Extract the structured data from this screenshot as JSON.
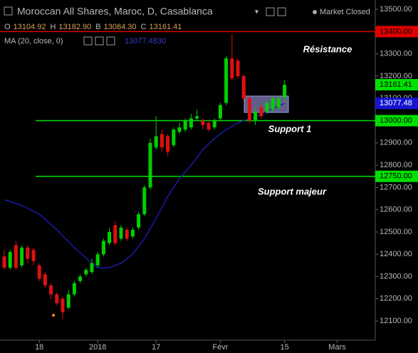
{
  "header": {
    "title": "Moroccan All Shares, Maroc, D, Casablanca",
    "status": "Market Closed",
    "ohlc": [
      {
        "label": "O",
        "value": "13104.92"
      },
      {
        "label": "H",
        "value": "13182.90"
      },
      {
        "label": "B",
        "value": "13084.30"
      },
      {
        "label": "C",
        "value": "13161.41"
      }
    ],
    "indicator_value": "13077.4830"
  },
  "chart_data": {
    "type": "candlestick",
    "categories": [
      null,
      null,
      null,
      null,
      null,
      null,
      "18",
      null,
      null,
      null,
      null,
      null,
      null,
      null,
      null,
      null,
      "2018",
      null,
      null,
      null,
      null,
      null,
      null,
      null,
      null,
      null,
      "17",
      null,
      null,
      null,
      null,
      null,
      null,
      null,
      null,
      null,
      null,
      "Févr",
      null,
      null,
      null,
      null,
      null,
      null,
      null,
      null,
      null,
      null,
      "15",
      null,
      null,
      null,
      null,
      null,
      null,
      null,
      null,
      "Mars"
    ],
    "open": [
      12390,
      12340,
      12440,
      12350,
      12430,
      12420,
      12350,
      12310,
      12260,
      12220,
      12200,
      12160,
      12220,
      12280,
      12310,
      12320,
      12350,
      12400,
      12450,
      12530,
      12470,
      12510,
      12480,
      12520,
      12580,
      12700,
      12880,
      12940,
      12930,
      12890,
      12950,
      12960,
      12970,
      13010,
      13000,
      12990,
      12970,
      13010,
      13080,
      13280,
      13270,
      13200,
      13100,
      13000,
      13060,
      13040,
      13050,
      13060,
      13104.92,
      null,
      null,
      null,
      null,
      null,
      null,
      null,
      null,
      null
    ],
    "high": [
      12420,
      12420,
      12460,
      12440,
      12440,
      12430,
      12360,
      12320,
      12270,
      12230,
      12210,
      12240,
      12280,
      12310,
      12340,
      12380,
      12410,
      12470,
      12520,
      12550,
      12530,
      12520,
      12520,
      12590,
      12710,
      12920,
      13020,
      12960,
      12940,
      12970,
      12990,
      13010,
      13030,
      13050,
      13010,
      13000,
      13010,
      13080,
      13290,
      13390,
      13280,
      13210,
      13110,
      13060,
      13070,
      13090,
      13110,
      13110,
      13182.9,
      null,
      null,
      null,
      null,
      null,
      null,
      null,
      null,
      null
    ],
    "low": [
      12330,
      12330,
      12330,
      12340,
      12360,
      12350,
      12280,
      12250,
      12200,
      12170,
      12110,
      12150,
      12210,
      12270,
      12300,
      12310,
      12340,
      12390,
      12440,
      12440,
      12460,
      12460,
      12470,
      12510,
      12570,
      12690,
      12870,
      12860,
      12840,
      12880,
      12940,
      12950,
      12960,
      13000,
      12960,
      12950,
      12960,
      13000,
      13070,
      13180,
      13190,
      13090,
      12990,
      12980,
      13010,
      13030,
      13040,
      13050,
      13084.3,
      null,
      null,
      null,
      null,
      null,
      null,
      null,
      null,
      null
    ],
    "close": [
      12340,
      12410,
      12340,
      12430,
      12380,
      12370,
      12290,
      12260,
      12220,
      12180,
      12140,
      12220,
      12270,
      12300,
      12330,
      12360,
      12400,
      12460,
      12500,
      12450,
      12520,
      12470,
      12510,
      12580,
      12700,
      12900,
      12930,
      12880,
      12860,
      12960,
      12970,
      13000,
      13010,
      13020,
      12980,
      12960,
      13000,
      13070,
      13280,
      13190,
      13200,
      13100,
      13000,
      13040,
      13020,
      13080,
      13100,
      13100,
      13161.41,
      null,
      null,
      null,
      null,
      null,
      null,
      null,
      null,
      null
    ],
    "up_color": "#00d000",
    "down_color": "#e01010",
    "series": [
      {
        "name": "MA (20, close, 0)",
        "color": "#1a1aa8",
        "values": [
          12645,
          12637,
          12628,
          12620,
          12607,
          12593,
          12580,
          12557,
          12533,
          12510,
          12483,
          12457,
          12430,
          12407,
          12383,
          12360,
          12340,
          12338,
          12340,
          12350,
          12360,
          12380,
          12400,
          12435,
          12470,
          12515,
          12560,
          12610,
          12660,
          12700,
          12740,
          12770,
          12800,
          12835,
          12870,
          12895,
          12920,
          12940,
          12960,
          12975,
          12990,
          13000,
          13010,
          13020,
          13030,
          13042,
          13055,
          13066,
          13077.48,
          null,
          null,
          null,
          null,
          null,
          null,
          null,
          null,
          null
        ]
      }
    ],
    "ylim": [
      12014,
      13542
    ],
    "yticks": [
      {
        "value": 12100,
        "label": "12100.00"
      },
      {
        "value": 12200,
        "label": "12200.00"
      },
      {
        "value": 12300,
        "label": "12300.00"
      },
      {
        "value": 12400,
        "label": "12400.00"
      },
      {
        "value": 12500,
        "label": "12500.00"
      },
      {
        "value": 12600,
        "label": "12600.00"
      },
      {
        "value": 12700,
        "label": "12700.00"
      },
      {
        "value": 12800,
        "label": "12800.00"
      },
      {
        "value": 12900,
        "label": "12900.00"
      },
      {
        "value": 13000,
        "label": "13000.00"
      },
      {
        "value": 13100,
        "label": "13100.00"
      },
      {
        "value": 13200,
        "label": "13200.00"
      },
      {
        "value": 13300,
        "label": "13300.00"
      },
      {
        "value": 13400,
        "label": "13400.00"
      },
      {
        "value": 13500,
        "label": "13500.00"
      }
    ],
    "hlines": [
      {
        "value": 13400,
        "label": "13400.00",
        "color": "#e00000"
      },
      {
        "value": 13000,
        "label": "13000.00",
        "color": "#00e000"
      },
      {
        "value": 12750,
        "label": "12750.00",
        "color": "#00e000"
      }
    ],
    "price_tags": [
      {
        "value": 13161.41,
        "label": "13161.41",
        "color": "#00e000"
      },
      {
        "value": 13077.48,
        "label": "13077.48",
        "color": "#1515d0"
      }
    ],
    "annotations": [
      "Résistance",
      "Support 1",
      "Support majeur"
    ]
  }
}
